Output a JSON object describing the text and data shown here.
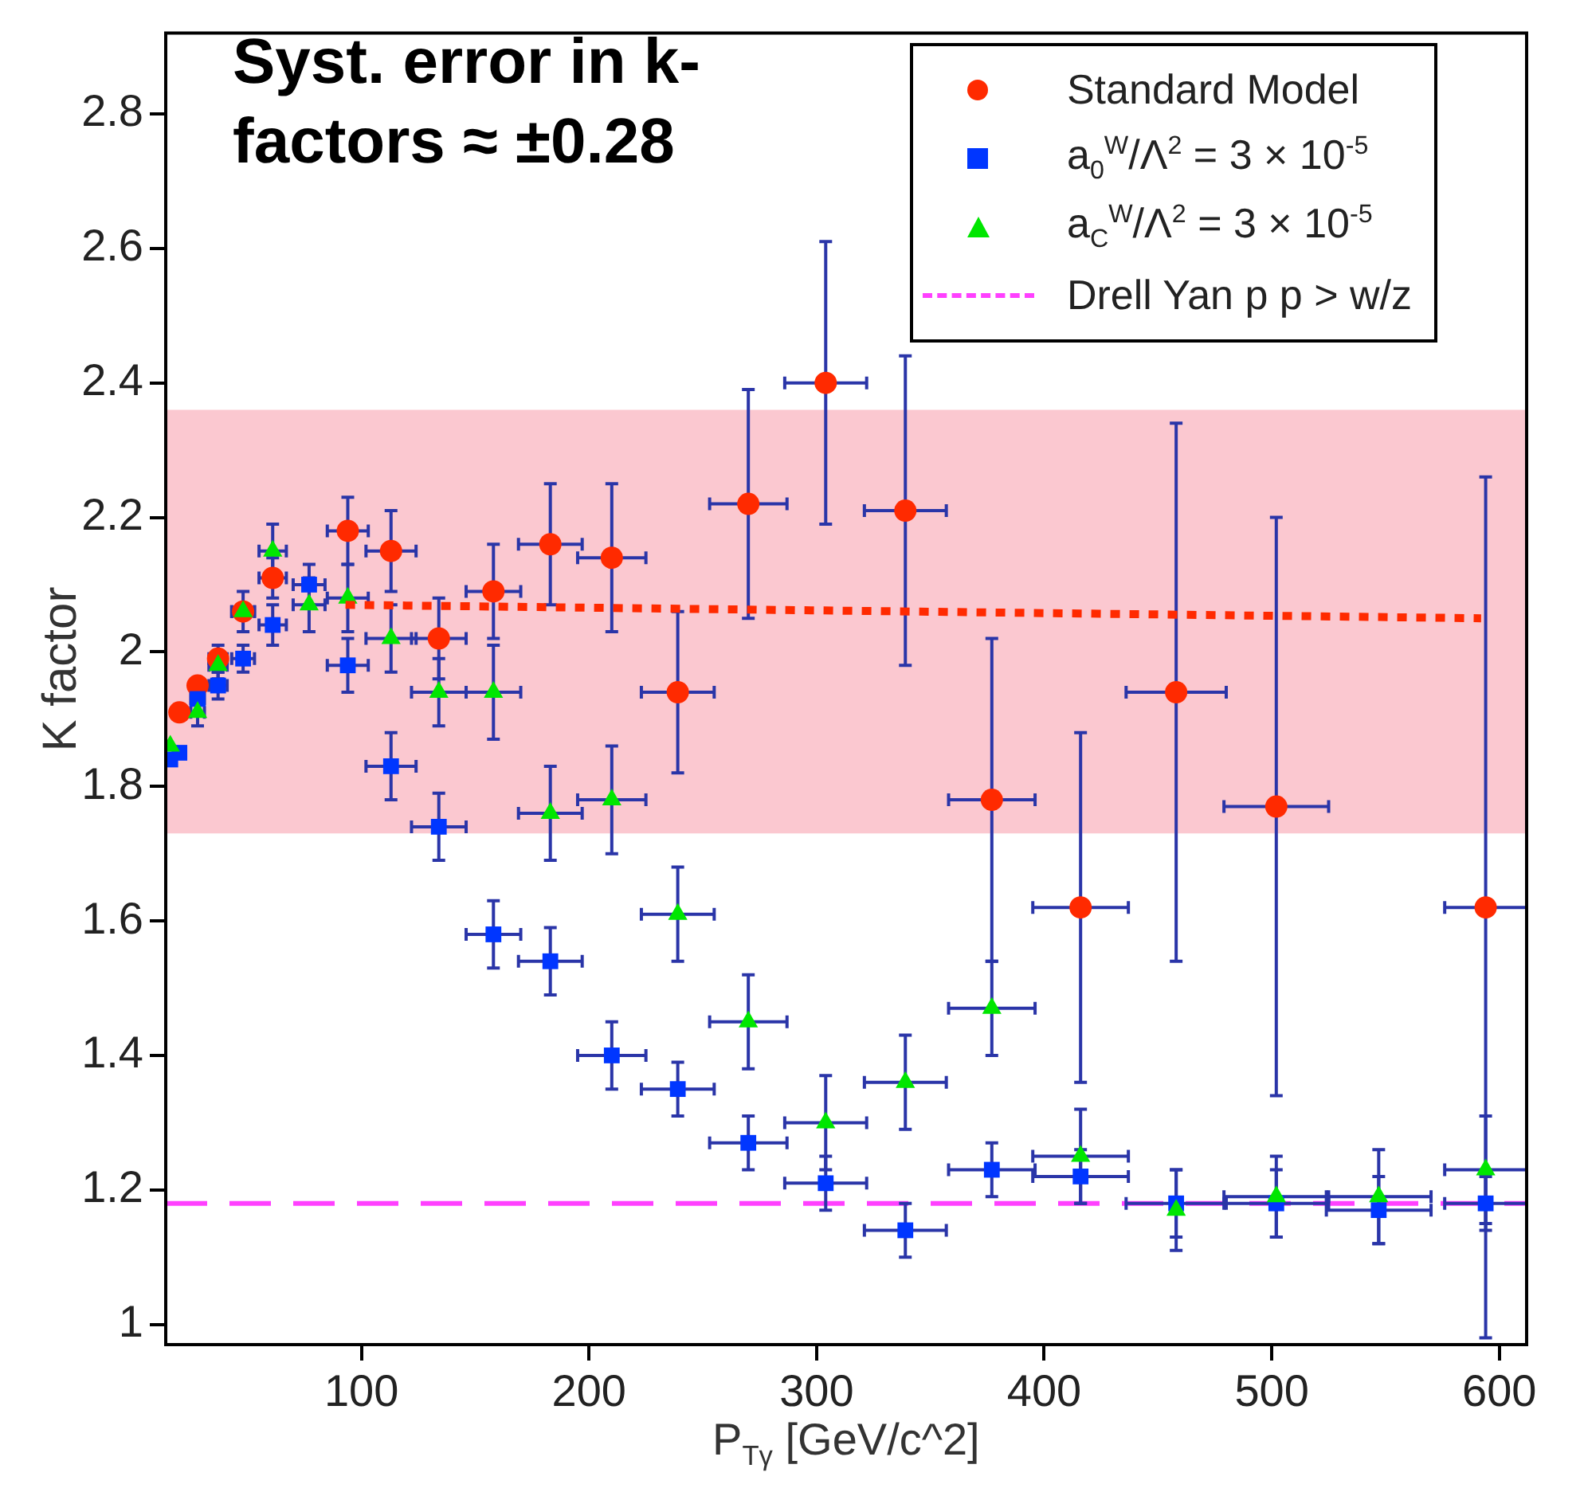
{
  "chart_data": {
    "type": "scatter",
    "xlabel": "P$_{T}$$_{γ}$ [GeV/c^2]",
    "ylabel": "K factor",
    "annotations": [
      "Syst. error in k-factors ≈ ±0.28"
    ],
    "x": [
      16,
      20,
      28,
      37,
      48,
      61,
      77,
      94,
      113,
      134,
      158,
      183,
      210,
      239,
      270,
      304,
      339,
      377,
      416,
      458,
      502,
      547,
      594
    ],
    "series": [
      {
        "name": "Standard Model",
        "color": "#ff2a00",
        "marker": "circle",
        "values": [
          null,
          1.91,
          1.95,
          1.99,
          2.06,
          2.11,
          null,
          2.18,
          2.15,
          2.02,
          2.09,
          2.16,
          2.14,
          1.94,
          2.22,
          2.4,
          2.21,
          1.78,
          1.62,
          1.94,
          1.77,
          null,
          1.62
        ],
        "errors": [
          null,
          null,
          null,
          0.02,
          null,
          0.03,
          null,
          0.05,
          0.06,
          0.06,
          0.07,
          0.09,
          0.11,
          0.12,
          0.17,
          0.21,
          0.23,
          0.24,
          0.26,
          0.4,
          0.43,
          null,
          0.64
        ],
        "xerrors": [
          null,
          null,
          null,
          4,
          5,
          6,
          null,
          9,
          11,
          12,
          12,
          14,
          15,
          16,
          17,
          18,
          18,
          19,
          21,
          22,
          23,
          null,
          18
        ]
      },
      {
        "name": "a$_{0}$$^{W}$/Λ$^{2}$ = 3 × 10$^{-5}$",
        "color": "#0036ff",
        "marker": "square",
        "values": [
          1.84,
          1.85,
          1.93,
          1.95,
          1.99,
          2.04,
          2.1,
          1.98,
          1.83,
          1.74,
          1.58,
          1.54,
          1.4,
          1.35,
          1.27,
          1.21,
          1.14,
          1.23,
          1.22,
          1.18,
          1.18,
          1.17,
          1.18
        ],
        "errors": [
          null,
          null,
          null,
          0.02,
          0.02,
          0.03,
          0.03,
          0.04,
          0.05,
          0.05,
          0.05,
          0.05,
          0.05,
          0.04,
          0.04,
          0.04,
          0.04,
          0.04,
          0.04,
          0.05,
          0.05,
          0.05,
          0.04
        ],
        "xerrors": [
          null,
          null,
          3,
          4,
          5,
          6,
          7,
          9,
          11,
          12,
          12,
          14,
          15,
          16,
          17,
          18,
          18,
          19,
          21,
          22,
          23,
          23,
          18
        ]
      },
      {
        "name": "a$_{C}$$^{W}$/Λ$^{2}$ = 3 × 10$^{-5}$",
        "color": "#00e600",
        "marker": "triangle",
        "values": [
          1.86,
          null,
          1.91,
          1.98,
          2.06,
          2.15,
          2.07,
          2.08,
          2.02,
          1.94,
          1.94,
          1.76,
          1.78,
          1.61,
          1.45,
          1.3,
          1.36,
          1.47,
          1.25,
          1.17,
          1.19,
          1.19,
          1.23
        ],
        "errors": [
          null,
          null,
          0.02,
          0.02,
          0.03,
          0.04,
          0.04,
          0.05,
          0.05,
          0.05,
          0.07,
          0.07,
          0.08,
          0.07,
          0.07,
          0.07,
          0.07,
          0.07,
          0.07,
          0.06,
          0.06,
          0.07,
          0.08
        ],
        "xerrors": [
          null,
          null,
          3,
          4,
          5,
          6,
          7,
          9,
          11,
          12,
          12,
          14,
          15,
          16,
          17,
          18,
          18,
          19,
          21,
          null,
          23,
          23,
          18
        ]
      },
      {
        "type": "line",
        "x": [
          93,
          592
        ],
        "values": [
          2.07,
          2.05
        ],
        "color": "#ff2a00",
        "marker": "none",
        "line_style": "dotted"
      }
    ],
    "ref_lines": [
      {
        "axis": "y",
        "value": 1.18,
        "label": "Drell Yan p p > w/z",
        "color": "#ff40ff",
        "line_style": "dashed"
      }
    ],
    "bands": [
      {
        "axis": "y",
        "from": 1.73,
        "to": 2.36,
        "color": "#fbc8d0"
      }
    ],
    "xlim": [
      14,
      612
    ],
    "xticks": [
      100,
      200,
      300,
      400,
      500,
      600
    ],
    "ylim": [
      0.97,
      2.92
    ],
    "yticks": [
      1,
      1.2,
      1.4,
      1.6,
      1.8,
      2,
      2.2,
      2.4,
      2.6,
      2.8
    ],
    "legend": "top right"
  }
}
